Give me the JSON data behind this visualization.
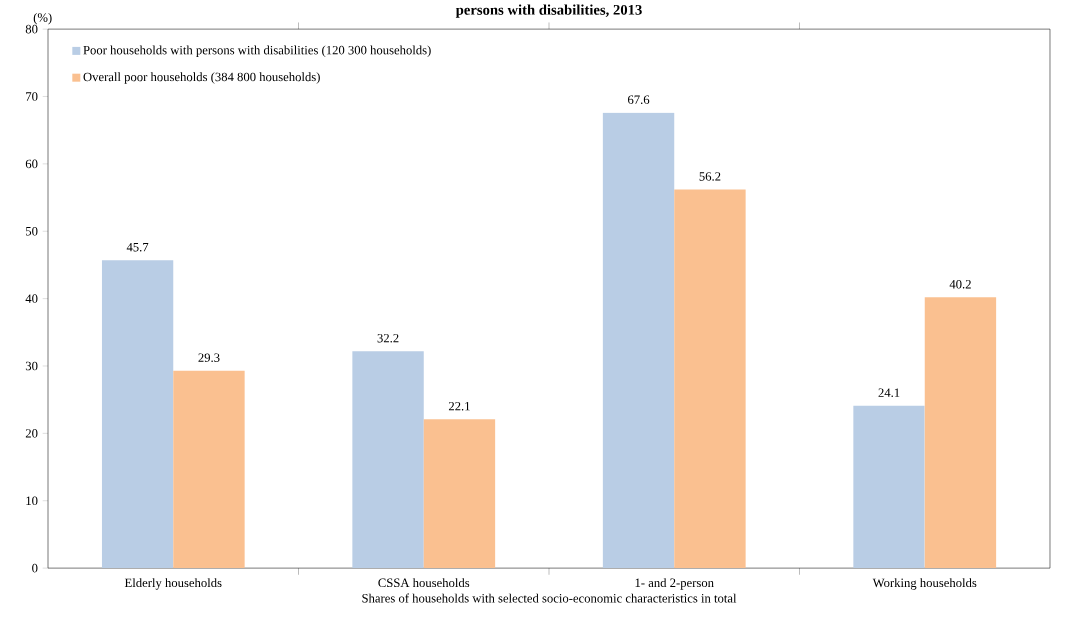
{
  "chart_data": {
    "type": "bar",
    "title": "persons with disabilities, 2013",
    "xlabel": "Shares of households with selected socio-economic characteristics in total",
    "ylabel": "(%)",
    "categories": [
      "Elderly households",
      "CSSA households",
      "1- and 2-person",
      "Working households"
    ],
    "series": [
      {
        "name": "Poor households with persons with disabilities (120 300 households)",
        "color": "#b9cde5",
        "values": [
          45.7,
          32.2,
          67.6,
          24.1
        ]
      },
      {
        "name": "Overall poor households (384 800 households)",
        "color": "#fac090",
        "values": [
          29.3,
          22.1,
          56.2,
          40.2
        ]
      }
    ],
    "ylim": [
      0,
      80
    ],
    "yticks": [
      0,
      10,
      20,
      30,
      40,
      50,
      60,
      70,
      80
    ],
    "data_labels": true,
    "legend": "top left",
    "grid": false
  }
}
